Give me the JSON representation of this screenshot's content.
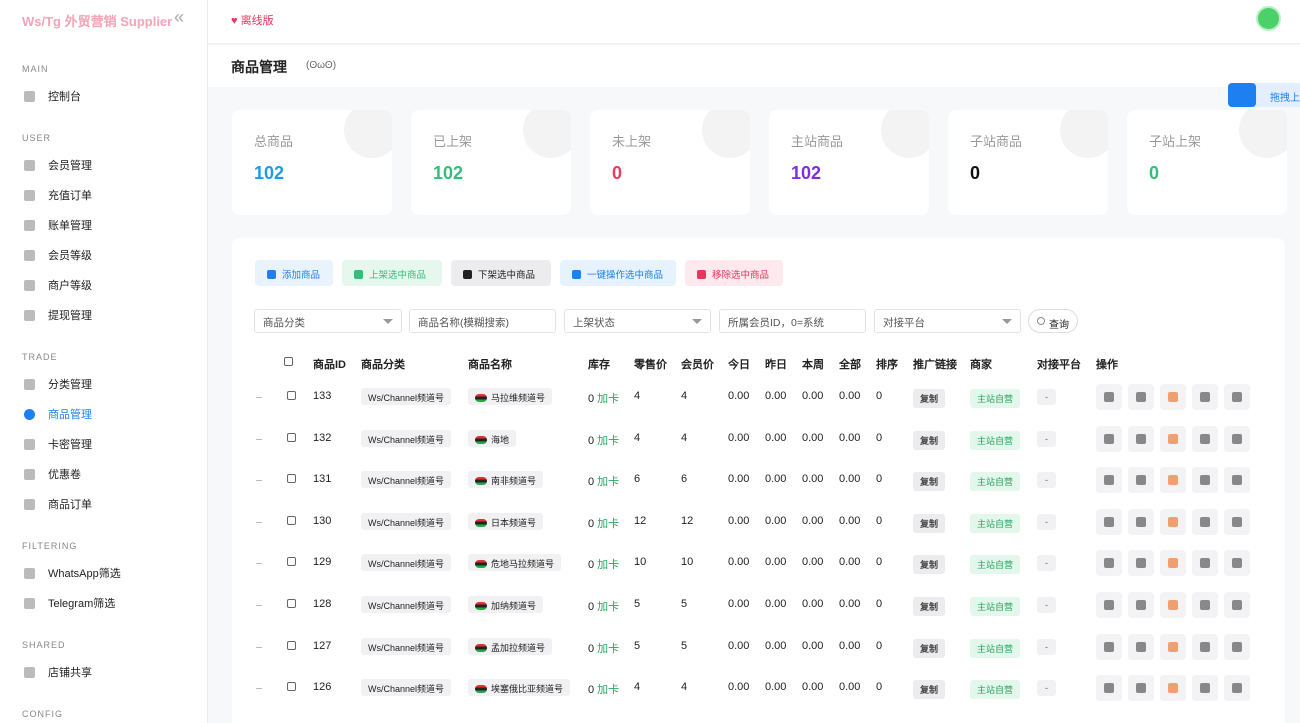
{
  "brand": "Ws/Tg 外贸营销 Supplier",
  "top_bar": {
    "status": "离线版"
  },
  "page_header": {
    "title": "商品管理",
    "emoticon": "(ʘωʘ)"
  },
  "floating_tab": {
    "label": "拖拽上传"
  },
  "sidebar": {
    "sections": [
      {
        "title": "MAIN",
        "items": [
          "控制台"
        ]
      },
      {
        "title": "USER",
        "items": [
          "会员管理",
          "充值订单",
          "账单管理",
          "会员等级",
          "商户等级",
          "提现管理"
        ]
      },
      {
        "title": "TRADE",
        "items": [
          "分类管理",
          "商品管理",
          "卡密管理",
          "优惠卷",
          "商品订单"
        ]
      },
      {
        "title": "FILTERING",
        "items": [
          "WhatsApp筛选",
          "Telegram筛选"
        ]
      },
      {
        "title": "SHARED",
        "items": [
          "店铺共享"
        ]
      },
      {
        "title": "CONFIG",
        "items": []
      }
    ],
    "active": "商品管理"
  },
  "stats": [
    {
      "label": "总商品",
      "value": 102,
      "color": "#1e9be9"
    },
    {
      "label": "已上架",
      "value": 102,
      "color": "#35bd7a"
    },
    {
      "label": "未上架",
      "value": 0,
      "color": "#ec3a62"
    },
    {
      "label": "主站商品",
      "value": 102,
      "color": "#7d2fe3"
    },
    {
      "label": "子站商品",
      "value": 0,
      "color": "#111111"
    },
    {
      "label": "子站上架",
      "value": 0,
      "color": "#35bd7a"
    }
  ],
  "toolbar": [
    "添加商品",
    "上架选中商品",
    "下架选中商品",
    "一键操作选中商品",
    "移除选中商品"
  ],
  "filters": {
    "fields": [
      "商品分类",
      "商品名称(模糊搜索)",
      "上架状态",
      "所属会员ID，0=系统",
      "对接平台"
    ],
    "search": "查询"
  },
  "table": {
    "headers": [
      "商品ID",
      "商品分类",
      "商品名称",
      "库存",
      "零售价",
      "会员价",
      "今日",
      "昨日",
      "本周",
      "全部",
      "排序",
      "推广链接",
      "商家",
      "对接平台",
      "操作"
    ],
    "rows": [
      [
        133,
        "Ws/Channel频道号",
        "马拉维频道号",
        "0",
        "加卡",
        "4",
        "4",
        "0.00",
        "0.00",
        "0.00",
        "0.00",
        "0",
        "复制",
        "主站自营",
        "-"
      ],
      [
        132,
        "Ws/Channel频道号",
        "海地",
        "0",
        "加卡",
        "4",
        "4",
        "0.00",
        "0.00",
        "0.00",
        "0.00",
        "0",
        "复制",
        "主站自营",
        "-"
      ],
      [
        131,
        "Ws/Channel频道号",
        "南非频道号",
        "0",
        "加卡",
        "6",
        "6",
        "0.00",
        "0.00",
        "0.00",
        "0.00",
        "0",
        "复制",
        "主站自营",
        "-"
      ],
      [
        130,
        "Ws/Channel频道号",
        "日本频道号",
        "0",
        "加卡",
        "12",
        "12",
        "0.00",
        "0.00",
        "0.00",
        "0.00",
        "0",
        "复制",
        "主站自营",
        "-"
      ],
      [
        129,
        "Ws/Channel频道号",
        "危地马拉频道号",
        "0",
        "加卡",
        "10",
        "10",
        "0.00",
        "0.00",
        "0.00",
        "0.00",
        "0",
        "复制",
        "主站自营",
        "-"
      ],
      [
        128,
        "Ws/Channel频道号",
        "加纳频道号",
        "0",
        "加卡",
        "5",
        "5",
        "0.00",
        "0.00",
        "0.00",
        "0.00",
        "0",
        "复制",
        "主站自营",
        "-"
      ],
      [
        127,
        "Ws/Channel频道号",
        "孟加拉频道号",
        "0",
        "加卡",
        "5",
        "5",
        "0.00",
        "0.00",
        "0.00",
        "0.00",
        "0",
        "复制",
        "主站自营",
        "-"
      ],
      [
        126,
        "Ws/Channel频道号",
        "埃塞俄比亚频道号",
        "0",
        "加卡",
        "4",
        "4",
        "0.00",
        "0.00",
        "0.00",
        "0.00",
        "0",
        "复制",
        "主站自营",
        "-"
      ]
    ]
  }
}
